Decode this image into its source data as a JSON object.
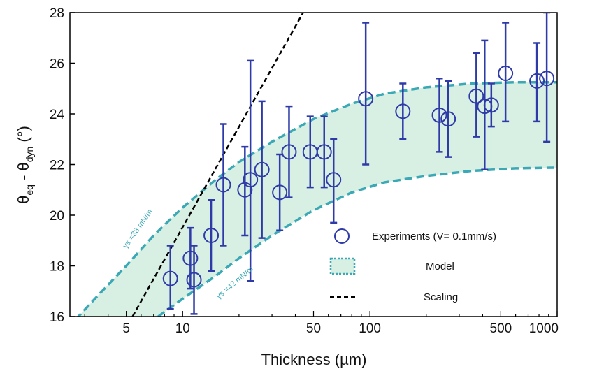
{
  "chart_data": {
    "type": "scatter",
    "xlabel": "Thickness (µm)",
    "ylabel_parts": {
      "theta1": "θ",
      "sub1": "eq",
      "mid": " - θ",
      "sub2": "dyn",
      "unit": " (°)"
    },
    "xscale": "log",
    "xlim": [
      2.5,
      1000
    ],
    "ylim": [
      16,
      28
    ],
    "xticks": [
      5,
      10,
      50,
      100,
      500,
      1000
    ],
    "yticks": [
      16,
      18,
      20,
      22,
      24,
      26,
      28
    ],
    "grid": false,
    "legend_position": "bottom-right",
    "legend": {
      "experiments": "Experiments (V= 0.1mm/s)",
      "model": "Model",
      "scaling": "Scaling"
    },
    "curve_labels": {
      "upper": "γs =38 mN/m",
      "lower": "γs =42 mN/m"
    },
    "colors": {
      "points": "#2e3aa8",
      "model_fill": "#d8efe4",
      "model_edge": "#3aa8b5",
      "scaling": "#000000"
    },
    "series": [
      {
        "name": "Experiments (V= 0.1mm/s)",
        "points": [
          {
            "x": 8.6,
            "y": 17.5,
            "err": [
              16.3,
              18.8
            ]
          },
          {
            "x": 11.0,
            "y": 18.3,
            "err": [
              17.1,
              19.5
            ]
          },
          {
            "x": 11.5,
            "y": 17.45,
            "err": [
              16.1,
              18.8
            ]
          },
          {
            "x": 14.2,
            "y": 19.2,
            "err": [
              17.8,
              20.6
            ]
          },
          {
            "x": 16.5,
            "y": 21.2,
            "err": [
              18.8,
              23.6
            ]
          },
          {
            "x": 21.5,
            "y": 21.0,
            "err": [
              19.2,
              22.7
            ]
          },
          {
            "x": 23.0,
            "y": 21.4,
            "err": [
              17.4,
              26.1
            ]
          },
          {
            "x": 26.5,
            "y": 21.8,
            "err": [
              19.1,
              24.5
            ]
          },
          {
            "x": 33.0,
            "y": 20.9,
            "err": [
              19.4,
              22.4
            ]
          },
          {
            "x": 37.0,
            "y": 22.5,
            "err": [
              20.7,
              24.3
            ]
          },
          {
            "x": 48.0,
            "y": 22.5,
            "err": [
              21.1,
              23.9
            ]
          },
          {
            "x": 57.0,
            "y": 22.5,
            "err": [
              21.1,
              23.9
            ]
          },
          {
            "x": 64.0,
            "y": 21.4,
            "err": [
              19.7,
              23.0
            ]
          },
          {
            "x": 95.0,
            "y": 24.6,
            "err": [
              22.0,
              27.6
            ]
          },
          {
            "x": 150.0,
            "y": 24.1,
            "err": [
              23.0,
              25.2
            ]
          },
          {
            "x": 235.0,
            "y": 23.95,
            "err": [
              22.5,
              25.4
            ]
          },
          {
            "x": 262.0,
            "y": 23.8,
            "err": [
              22.3,
              25.3
            ]
          },
          {
            "x": 370.0,
            "y": 24.7,
            "err": [
              23.1,
              26.4
            ]
          },
          {
            "x": 410.0,
            "y": 24.3,
            "err": [
              21.8,
              26.9
            ]
          },
          {
            "x": 445.0,
            "y": 24.35,
            "err": [
              23.5,
              25.2
            ]
          },
          {
            "x": 530.0,
            "y": 25.6,
            "err": [
              23.7,
              27.6
            ]
          },
          {
            "x": 780.0,
            "y": 25.3,
            "err": [
              23.7,
              26.8
            ]
          },
          {
            "x": 880.0,
            "y": 25.4,
            "err": [
              22.9,
              28.0
            ]
          }
        ]
      }
    ],
    "model_upper": [
      [
        2.2,
        15.2
      ],
      [
        3.5,
        16.8
      ],
      [
        5,
        18.0
      ],
      [
        7,
        19.2
      ],
      [
        10,
        20.3
      ],
      [
        15,
        21.4
      ],
      [
        20,
        22.1
      ],
      [
        30,
        22.9
      ],
      [
        50,
        23.8
      ],
      [
        80,
        24.4
      ],
      [
        120,
        24.8
      ],
      [
        200,
        25.05
      ],
      [
        350,
        25.2
      ],
      [
        600,
        25.25
      ],
      [
        1000,
        25.25
      ]
    ],
    "model_lower": [
      [
        7.4,
        16.0
      ],
      [
        10,
        16.7
      ],
      [
        15,
        17.6
      ],
      [
        20,
        18.3
      ],
      [
        30,
        19.2
      ],
      [
        50,
        20.2
      ],
      [
        80,
        20.9
      ],
      [
        120,
        21.3
      ],
      [
        200,
        21.55
      ],
      [
        350,
        21.75
      ],
      [
        600,
        21.85
      ],
      [
        1000,
        21.88
      ]
    ],
    "scaling_line": [
      [
        5.4,
        16.0
      ],
      [
        44,
        28.0
      ]
    ]
  }
}
